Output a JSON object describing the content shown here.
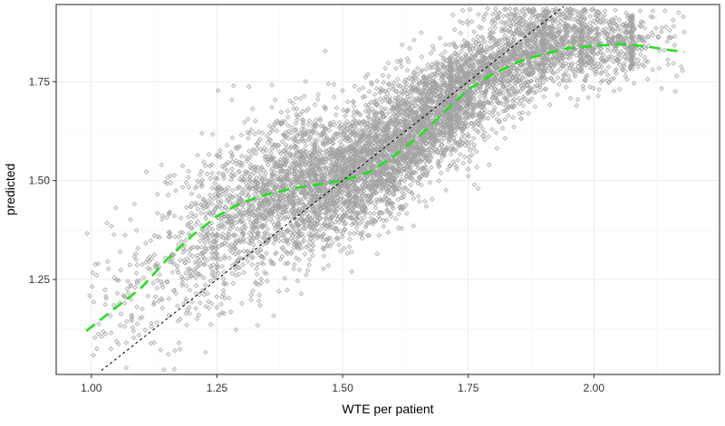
{
  "chart_data": {
    "type": "scatter",
    "title": "",
    "xlabel": "WTE per patient",
    "ylabel": "predicted",
    "xlim": [
      0.93,
      2.25
    ],
    "ylim": [
      1.01,
      1.945
    ],
    "x_ticks": [
      1.0,
      1.25,
      1.5,
      1.75,
      2.0
    ],
    "x_tick_labels": [
      "1.00",
      "1.25",
      "1.50",
      "1.75",
      "2.00"
    ],
    "y_ticks": [
      1.25,
      1.5,
      1.75
    ],
    "y_tick_labels": [
      "1.25",
      "1.50",
      "1.75"
    ],
    "grid": true,
    "theme": "black-and-white",
    "series": [
      {
        "name": "observations",
        "kind": "points",
        "marker": "diamond",
        "color": "#000000",
        "opacity": 0.3,
        "approx_count": 7000,
        "density_profile": [
          {
            "x": 1.0,
            "y_mean": 1.17,
            "y_spread": 0.09,
            "weight": 0.05
          },
          {
            "x": 1.1,
            "y_mean": 1.25,
            "y_spread": 0.12,
            "weight": 0.1
          },
          {
            "x": 1.2,
            "y_mean": 1.33,
            "y_spread": 0.12,
            "weight": 0.22
          },
          {
            "x": 1.3,
            "y_mean": 1.43,
            "y_spread": 0.1,
            "weight": 0.45
          },
          {
            "x": 1.4,
            "y_mean": 1.48,
            "y_spread": 0.09,
            "weight": 0.8
          },
          {
            "x": 1.5,
            "y_mean": 1.51,
            "y_spread": 0.08,
            "weight": 1.0
          },
          {
            "x": 1.6,
            "y_mean": 1.58,
            "y_spread": 0.08,
            "weight": 0.95
          },
          {
            "x": 1.7,
            "y_mean": 1.68,
            "y_spread": 0.07,
            "weight": 0.9
          },
          {
            "x": 1.8,
            "y_mean": 1.78,
            "y_spread": 0.07,
            "weight": 0.7
          },
          {
            "x": 1.9,
            "y_mean": 1.84,
            "y_spread": 0.06,
            "weight": 0.55
          },
          {
            "x": 2.0,
            "y_mean": 1.85,
            "y_spread": 0.05,
            "weight": 0.35
          },
          {
            "x": 2.1,
            "y_mean": 1.85,
            "y_spread": 0.04,
            "weight": 0.12
          },
          {
            "x": 2.18,
            "y_mean": 1.83,
            "y_spread": 0.05,
            "weight": 0.02
          }
        ]
      },
      {
        "name": "smooth fit",
        "kind": "line",
        "style": "dashed",
        "color": "#22e01f",
        "x": [
          0.99,
          1.05,
          1.1,
          1.15,
          1.2,
          1.25,
          1.3,
          1.35,
          1.4,
          1.45,
          1.5,
          1.55,
          1.6,
          1.65,
          1.7,
          1.75,
          1.8,
          1.85,
          1.9,
          1.95,
          2.0,
          2.05,
          2.1,
          2.15,
          2.18
        ],
        "y": [
          1.12,
          1.18,
          1.23,
          1.3,
          1.36,
          1.41,
          1.445,
          1.465,
          1.48,
          1.49,
          1.5,
          1.52,
          1.56,
          1.61,
          1.67,
          1.73,
          1.77,
          1.8,
          1.82,
          1.835,
          1.84,
          1.845,
          1.84,
          1.83,
          1.825
        ]
      },
      {
        "name": "identity line",
        "kind": "line",
        "style": "dotted",
        "color": "#000000",
        "x": [
          1.02,
          1.94
        ],
        "y": [
          1.02,
          1.94
        ]
      }
    ]
  }
}
